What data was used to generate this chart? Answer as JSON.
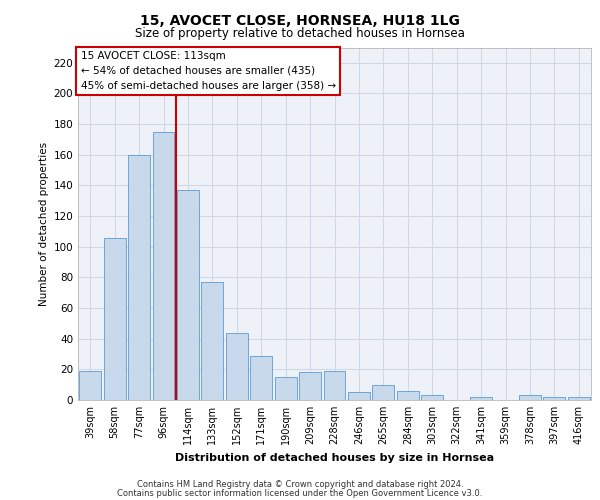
{
  "title1": "15, AVOCET CLOSE, HORNSEA, HU18 1LG",
  "title2": "Size of property relative to detached houses in Hornsea",
  "xlabel": "Distribution of detached houses by size in Hornsea",
  "ylabel": "Number of detached properties",
  "categories": [
    "39sqm",
    "58sqm",
    "77sqm",
    "96sqm",
    "114sqm",
    "133sqm",
    "152sqm",
    "171sqm",
    "190sqm",
    "209sqm",
    "228sqm",
    "246sqm",
    "265sqm",
    "284sqm",
    "303sqm",
    "322sqm",
    "341sqm",
    "359sqm",
    "378sqm",
    "397sqm",
    "416sqm"
  ],
  "values": [
    19,
    106,
    160,
    175,
    137,
    77,
    44,
    29,
    15,
    18,
    19,
    5,
    10,
    6,
    3,
    0,
    2,
    0,
    3,
    2,
    2
  ],
  "bar_color": "#c8d9eb",
  "bar_edge_color": "#5b9bd5",
  "vline_x": 3.5,
  "vline_color": "#cc0000",
  "annotation_text": "15 AVOCET CLOSE: 113sqm\n← 54% of detached houses are smaller (435)\n45% of semi-detached houses are larger (358) →",
  "annotation_box_color": "#ffffff",
  "annotation_box_edge": "#cc0000",
  "ylim": [
    0,
    230
  ],
  "yticks": [
    0,
    20,
    40,
    60,
    80,
    100,
    120,
    140,
    160,
    180,
    200,
    220
  ],
  "footer1": "Contains HM Land Registry data © Crown copyright and database right 2024.",
  "footer2": "Contains public sector information licensed under the Open Government Licence v3.0.",
  "grid_color": "#d0d8e8",
  "background_color": "#eef2f8"
}
